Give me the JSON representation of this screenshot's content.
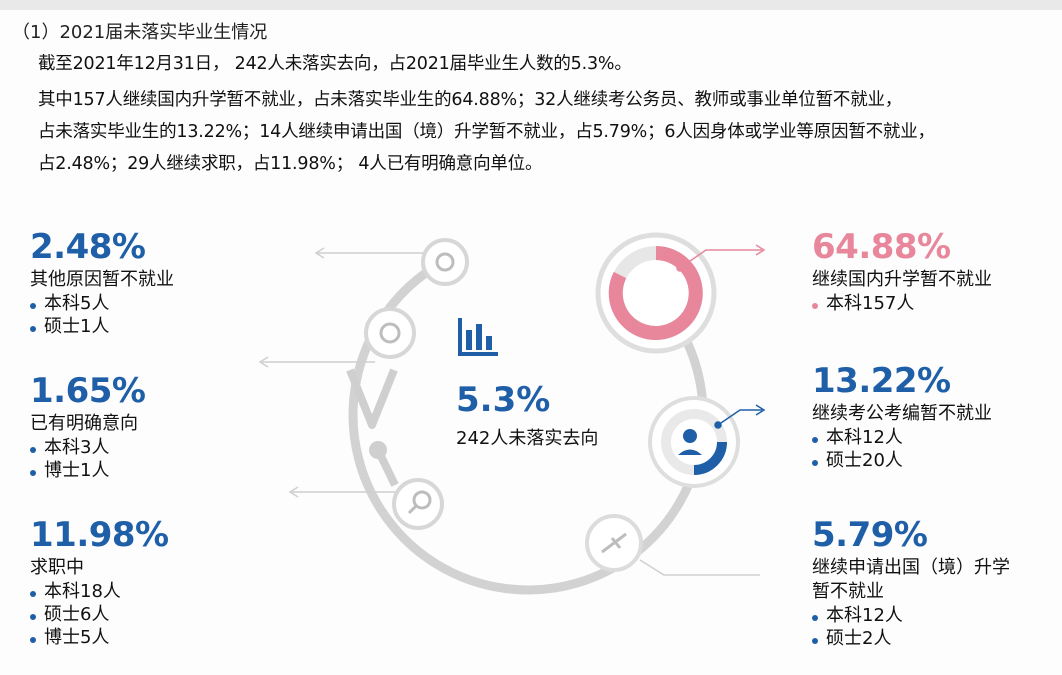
{
  "section_title": "（1）2021届未落实毕业生情况",
  "summary": "截至2021年12月31日， 242人未落实去向，占2021届毕业生人数的5.3%。",
  "detail_lines": [
    "其中157人继续国内升学暂不就业，占未落实毕业生的64.88%；32人继续考公务员、教师或事业单位暂不就业，",
    "占未落实毕业生的13.22%；14人继续申请出国（境）升学暂不就业，占5.79%；6人因身体或学业等原因暂不就业，",
    "占2.48%；29人继续求职，占11.98%； 4人已有明确意向单位。"
  ],
  "center": {
    "percent": "5.3%",
    "label": "242人未落实去向"
  },
  "left_stats": [
    {
      "percent": "2.48%",
      "label": "其他原因暂不就业",
      "items": [
        "本科5人",
        "硕士1人"
      ]
    },
    {
      "percent": "1.65%",
      "label": "已有明确意向",
      "items": [
        "本科3人",
        "博士1人"
      ]
    },
    {
      "percent": "11.98%",
      "label": "求职中",
      "items": [
        "本科18人",
        "硕士6人",
        "博士5人"
      ]
    }
  ],
  "right_stats": [
    {
      "percent": "64.88%",
      "label": "继续国内升学暂不就业",
      "items": [
        "本科157人"
      ]
    },
    {
      "percent": "13.22%",
      "label": "继续考公考编暂不就业",
      "items": [
        "本科12人",
        "硕士20人"
      ]
    },
    {
      "percent": "5.79%",
      "label": "继续申请出国（境）升学",
      "label2": "暂不就业",
      "items": [
        "本科12人",
        "硕士2人"
      ]
    }
  ],
  "colors": {
    "blue": "#1f5fa8",
    "pink": "#e8879b",
    "ring": "#d9d9d9",
    "icon_gray": "#bfbfbf"
  },
  "icons": [
    "bar-chart-icon",
    "graduation-cap-icon",
    "officer-icon",
    "airplane-icon",
    "search-icon",
    "handshake-icon",
    "other-icon"
  ]
}
